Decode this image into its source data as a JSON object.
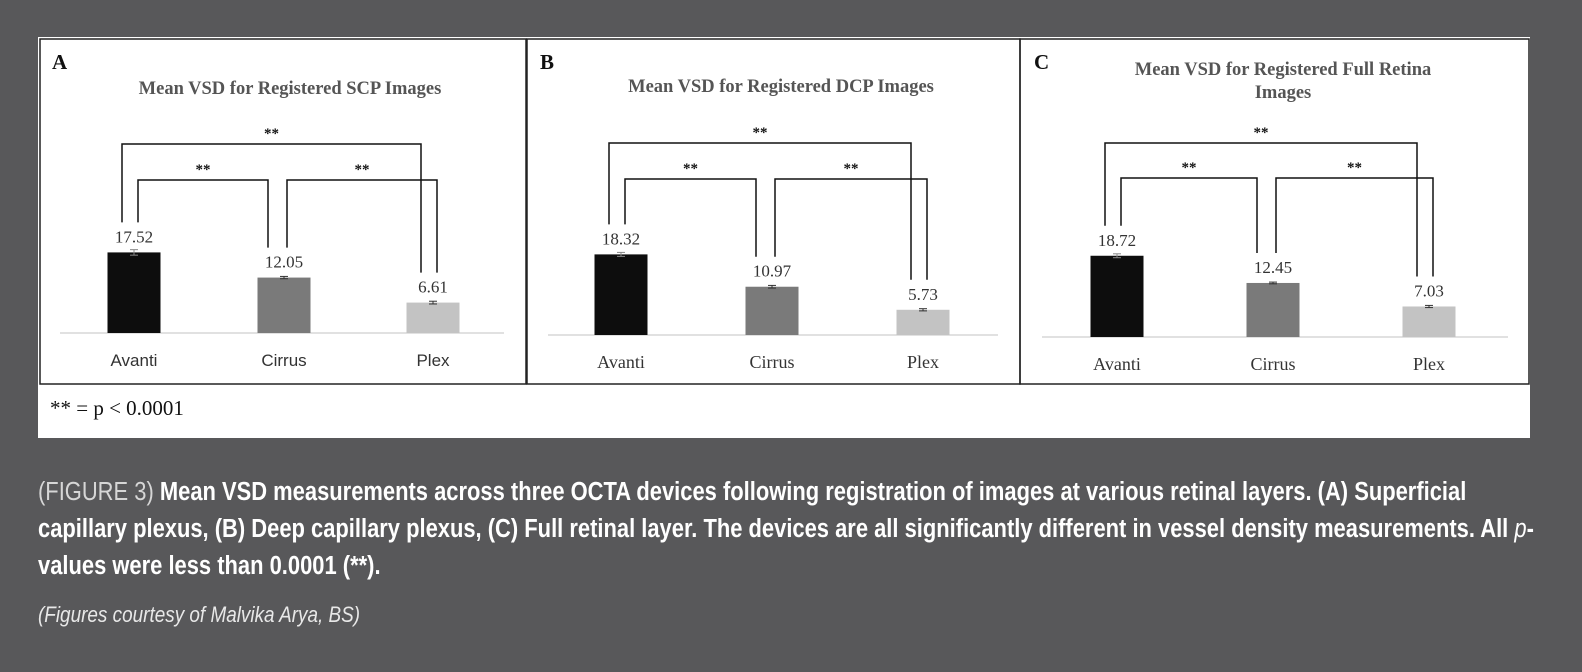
{
  "footnote": "** = p < 0.0001",
  "caption": {
    "figure_label": "(FIGURE 3)",
    "text_part1": "Mean VSD measurements across three OCTA devices following registration of images at various retinal layers. (A) Superficial capillary plexus, (B) Deep capillary plexus, (C) Full retinal layer. The devices are all significantly different in vessel density measurements. All ",
    "italic_p": "p",
    "text_part2": "-values were less than 0.0001 (**).",
    "credit": "(Figures courtesy of Malvika Arya, BS)"
  },
  "chart_data": [
    {
      "type": "bar",
      "panel_letter": "A",
      "title": [
        "Mean VSD for Registered SCP Images"
      ],
      "categories": [
        "Avanti",
        "Cirrus",
        "Plex"
      ],
      "values": [
        17.52,
        12.05,
        6.61
      ],
      "errors": [
        0.6,
        0.25,
        0.3
      ],
      "colors": [
        "#0d0d0d",
        "#7a7a7a",
        "#c3c3c3"
      ],
      "ylim": [
        0,
        25
      ],
      "significance": [
        {
          "from": 0,
          "to": 2,
          "label": "**"
        },
        {
          "from": 0,
          "to": 1,
          "label": "**"
        },
        {
          "from": 1,
          "to": 2,
          "label": "**"
        }
      ]
    },
    {
      "type": "bar",
      "panel_letter": "B",
      "title": [
        "Mean VSD for Registered DCP Images"
      ],
      "categories": [
        "Avanti",
        "Cirrus",
        "Plex"
      ],
      "values": [
        18.32,
        10.97,
        5.73
      ],
      "errors": [
        0.45,
        0.3,
        0.25
      ],
      "colors": [
        "#0d0d0d",
        "#7a7a7a",
        "#c3c3c3"
      ],
      "ylim": [
        0,
        25
      ],
      "significance": [
        {
          "from": 0,
          "to": 2,
          "label": "**"
        },
        {
          "from": 0,
          "to": 1,
          "label": "**"
        },
        {
          "from": 1,
          "to": 2,
          "label": "**"
        }
      ]
    },
    {
      "type": "bar",
      "panel_letter": "C",
      "title": [
        "Mean VSD for Registered Full Retina",
        "Images"
      ],
      "categories": [
        "Avanti",
        "Cirrus",
        "Plex"
      ],
      "values": [
        18.72,
        12.45,
        7.03
      ],
      "errors": [
        0.45,
        0.2,
        0.25
      ],
      "colors": [
        "#0d0d0d",
        "#7a7a7a",
        "#c3c3c3"
      ],
      "ylim": [
        0,
        25
      ],
      "significance": [
        {
          "from": 0,
          "to": 2,
          "label": "**"
        },
        {
          "from": 0,
          "to": 1,
          "label": "**"
        },
        {
          "from": 1,
          "to": 2,
          "label": "**"
        }
      ]
    }
  ]
}
